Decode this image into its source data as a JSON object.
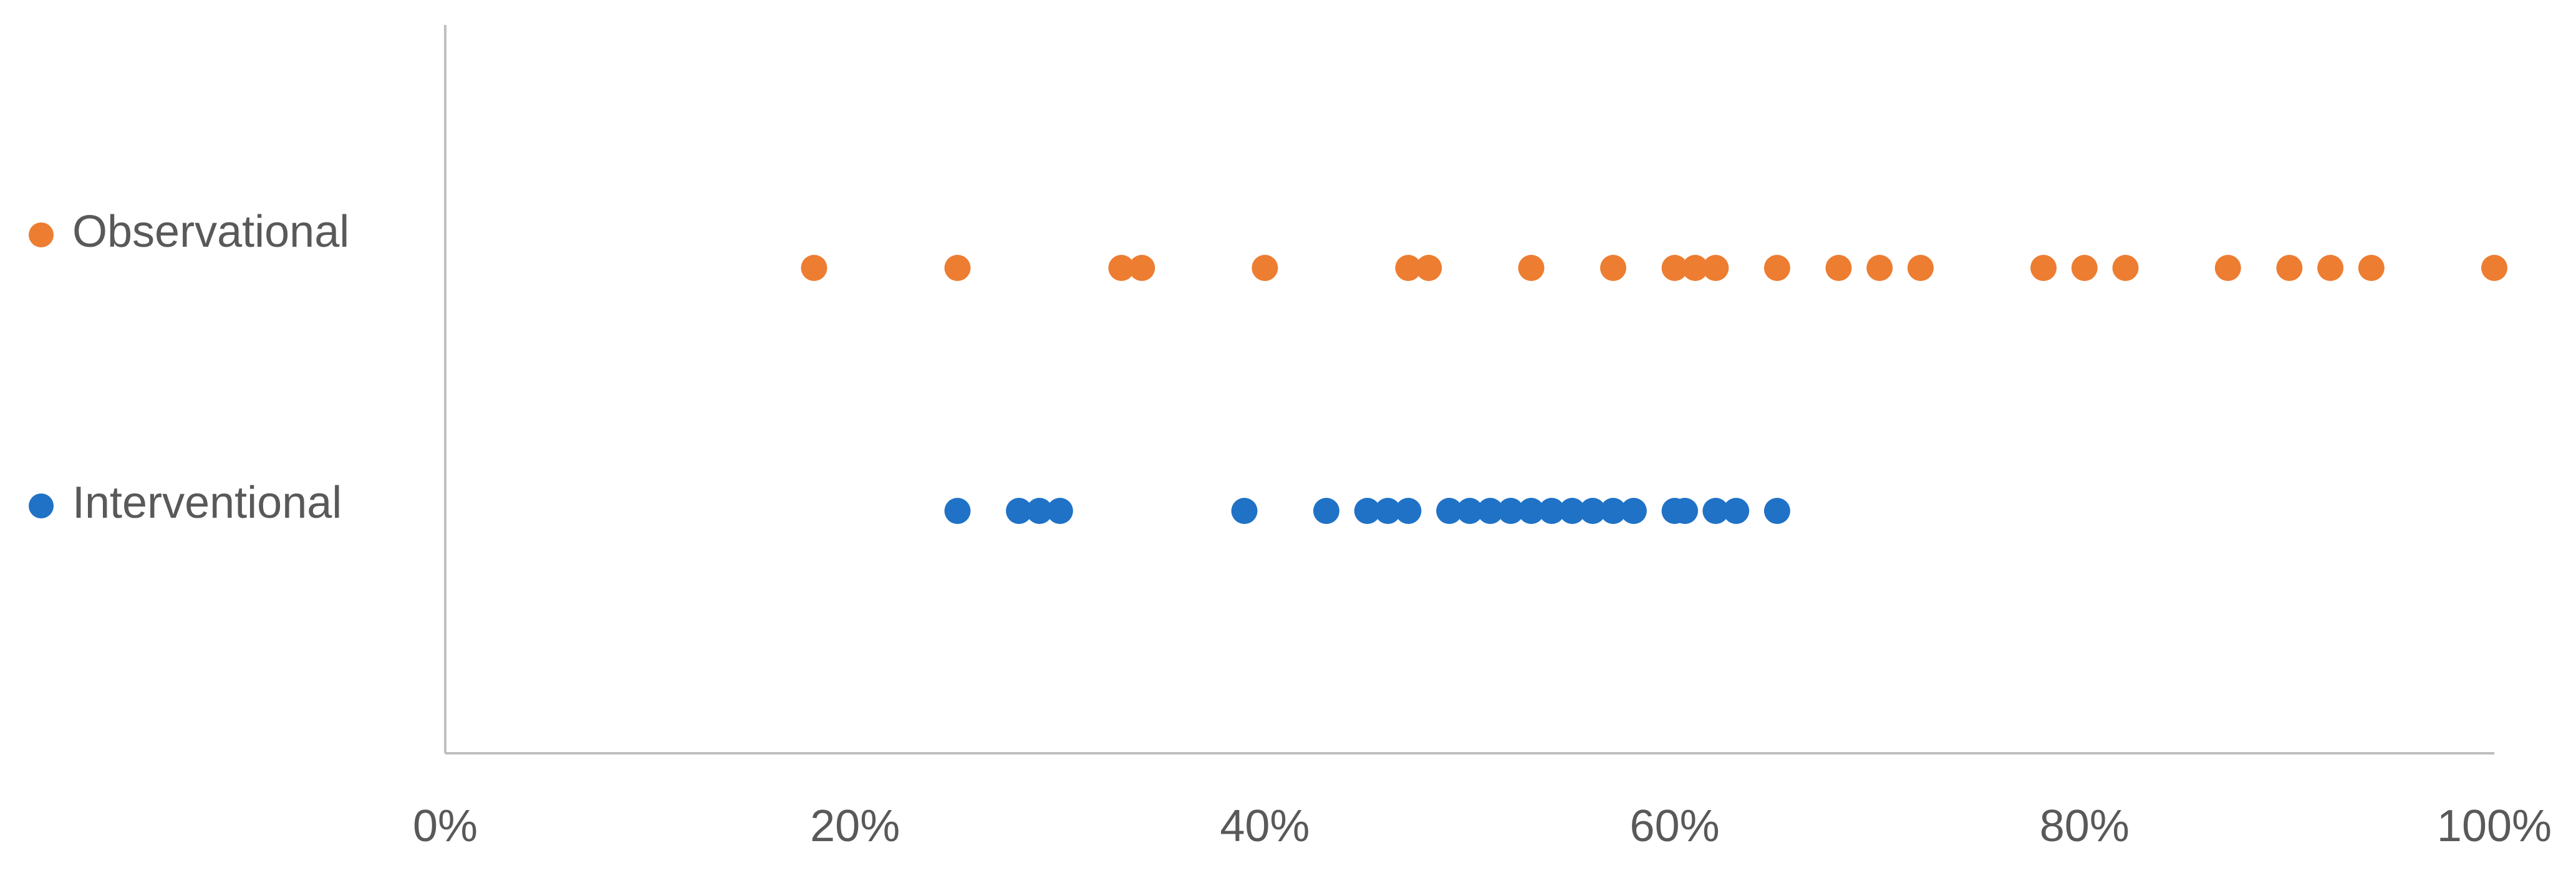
{
  "chart_data": {
    "type": "scatter",
    "series": [
      {
        "name": "Observational",
        "color": "#ED7D31",
        "values": [
          18,
          25,
          33,
          34,
          40,
          47,
          48,
          53,
          57,
          60,
          61,
          62,
          65,
          68,
          70,
          72,
          78,
          80,
          82,
          87,
          90,
          92,
          94,
          100
        ]
      },
      {
        "name": "Interventional",
        "color": "#1F72C6",
        "values": [
          25,
          28,
          29,
          30,
          39,
          43,
          45,
          46,
          47,
          49,
          50,
          51,
          52,
          53,
          54,
          55,
          56,
          57,
          58,
          60,
          60.5,
          62,
          63,
          65
        ]
      }
    ],
    "xlim": [
      0,
      100
    ],
    "xticks": [
      {
        "value": 0,
        "label": "0%"
      },
      {
        "value": 20,
        "label": "20%"
      },
      {
        "value": 40,
        "label": "40%"
      },
      {
        "value": 60,
        "label": "60%"
      },
      {
        "value": 80,
        "label": "80%"
      },
      {
        "value": 100,
        "label": "100%"
      }
    ],
    "grid": false
  }
}
